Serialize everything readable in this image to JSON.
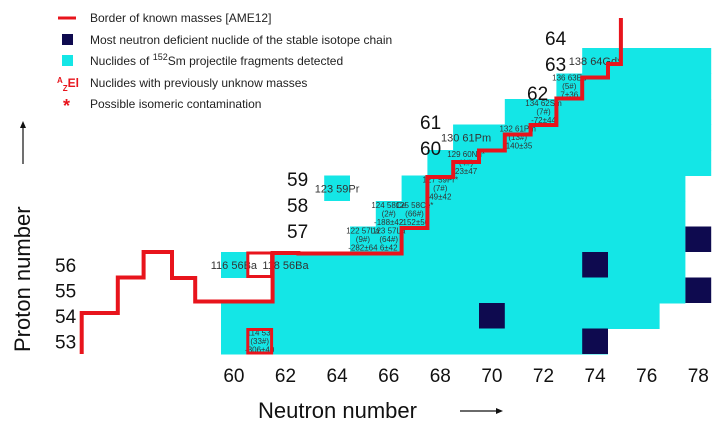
{
  "legend": [
    {
      "key": "border",
      "text": "Border of known masses [AME12]"
    },
    {
      "key": "deficient",
      "text": "Most neutron deficient nuclide of the stable isotope chain"
    },
    {
      "key": "detected",
      "text": "Nuclides of 152Sm projectile fragments detected",
      "parts": [
        "Nuclides of ",
        "152",
        "Sm projectile fragments detected"
      ]
    },
    {
      "key": "unknown",
      "text": "Nuclides with previously unknow masses",
      "symbol": "AZEl"
    },
    {
      "key": "isomeric",
      "text": "Possible isomeric contamination",
      "symbol": "*"
    }
  ],
  "colors": {
    "border": "#e8141c",
    "detected": "#14e6e6",
    "deficient": "#0e0a4f",
    "text": "#111111"
  },
  "x_axis": {
    "title": "Neutron number",
    "ticks": [
      "60",
      "62",
      "64",
      "66",
      "68",
      "70",
      "72",
      "74",
      "76",
      "78"
    ]
  },
  "y_axis": {
    "title": "Proton number",
    "ticks": [
      "53",
      "54",
      "55",
      "56"
    ]
  },
  "side_labels": [
    {
      "z": "57",
      "text": "57"
    },
    {
      "z": "58",
      "text": "58"
    },
    {
      "z": "59",
      "text": "59"
    },
    {
      "z": "60",
      "text": "60"
    },
    {
      "z": "61",
      "text": "61"
    },
    {
      "z": "62",
      "text": "62"
    },
    {
      "z": "63",
      "text": "63"
    },
    {
      "z": "64",
      "text": "64"
    }
  ],
  "chart_data": {
    "type": "table",
    "xlabel": "Neutron number",
    "ylabel": "Proton number",
    "detected_rows": [
      {
        "z": 53,
        "n_from": 60,
        "n_to": 74
      },
      {
        "z": 54,
        "n_from": 60,
        "n_to": 76
      },
      {
        "z": 55,
        "n_from": 62,
        "n_to": 77
      },
      {
        "z": 56,
        "n_from": 60,
        "n_to": 77,
        "gap": [
          61
        ]
      },
      {
        "z": 57,
        "n_from": 65,
        "n_to": 77
      },
      {
        "z": 58,
        "n_from": 66,
        "n_to": 77
      },
      {
        "z": 59,
        "n_from": 67,
        "n_to": 77
      },
      {
        "z": 60,
        "n_from": 68,
        "n_to": 78
      },
      {
        "z": 61,
        "n_from": 69,
        "n_to": 78
      },
      {
        "z": 62,
        "n_from": 71,
        "n_to": 78
      },
      {
        "z": 63,
        "n_from": 73,
        "n_to": 78
      },
      {
        "z": 64,
        "n_from": 74,
        "n_to": 78
      }
    ],
    "extra_detected": [
      {
        "z": 59,
        "n": 64
      },
      {
        "z": 61,
        "n": 69
      }
    ],
    "deficient_nuclides": [
      {
        "z": 53,
        "n": 74
      },
      {
        "z": 54,
        "n": 70
      },
      {
        "z": 55,
        "n": 78
      },
      {
        "z": 56,
        "n": 74
      },
      {
        "z": 57,
        "n": 78
      }
    ],
    "labeled_nuclides": [
      {
        "z": 53,
        "n": 61,
        "lines": [
          "114 53I",
          "(33#)",
          "-306±40"
        ]
      },
      {
        "z": 56,
        "n": 60,
        "lines": [
          "116 56Ba"
        ]
      },
      {
        "z": 56,
        "n": 62,
        "lines": [
          "118 56Ba"
        ]
      },
      {
        "z": 57,
        "n": 65,
        "lines": [
          "122 57La",
          "(9#)",
          "-282±64"
        ]
      },
      {
        "z": 57,
        "n": 66,
        "lines": [
          "123 57La",
          "(64#)",
          "6±42"
        ]
      },
      {
        "z": 58,
        "n": 66,
        "lines": [
          "124 58Ce",
          "(2#)",
          "-188±42"
        ]
      },
      {
        "z": 58,
        "n": 67,
        "lines": [
          "125 58Ce*",
          "(66#)",
          "-152±50"
        ]
      },
      {
        "z": 59,
        "n": 64,
        "lines": [
          "123 59Pr"
        ]
      },
      {
        "z": 59,
        "n": 68,
        "lines": [
          "127 59Pr*",
          "(7#)",
          "49±42"
        ]
      },
      {
        "z": 60,
        "n": 69,
        "lines": [
          "129 60Nd*",
          "(4#)",
          "23±47"
        ]
      },
      {
        "z": 61,
        "n": 69,
        "lines": [
          "130 61Pm"
        ]
      },
      {
        "z": 61,
        "n": 71,
        "lines": [
          "132 61Pm",
          "(13#)",
          "-140±35"
        ]
      },
      {
        "z": 62,
        "n": 72,
        "lines": [
          "134 62Sm",
          "(7#)",
          "-72±44"
        ]
      },
      {
        "z": 63,
        "n": 73,
        "lines": [
          "136 63Eu",
          "(5#)",
          "7±36"
        ]
      },
      {
        "z": 64,
        "n": 74,
        "lines": [
          "138 64Gd*"
        ]
      }
    ],
    "border_of_known_masses": [
      {
        "z": 53,
        "n_first_known": 60
      },
      {
        "z": 54,
        "n_first_known": 61
      },
      {
        "z": 55,
        "n_first_known": 62
      },
      {
        "z": 56,
        "n_first_known": 63
      },
      {
        "z": 57,
        "n_first_known": 65
      }
    ]
  }
}
